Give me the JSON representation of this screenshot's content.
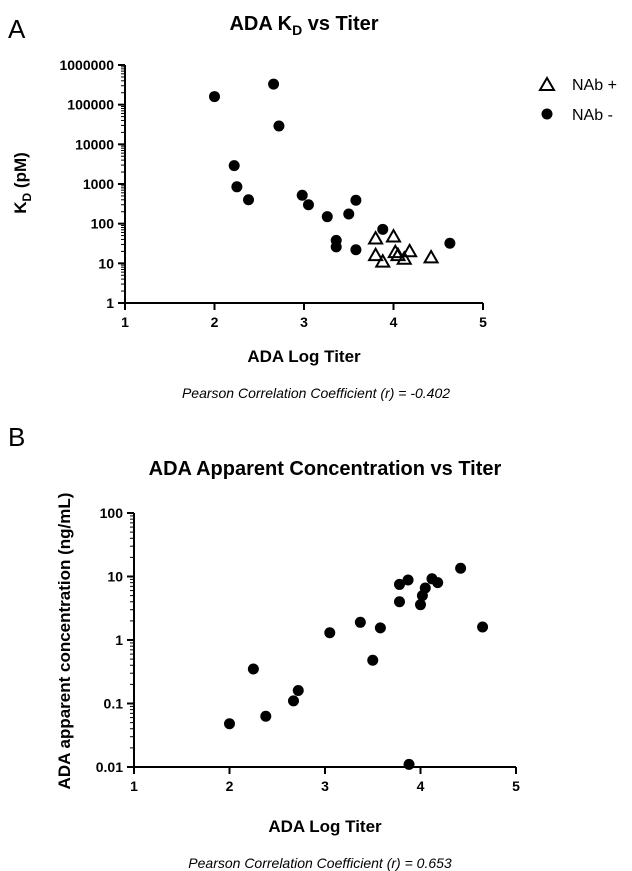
{
  "chart_data": [
    {
      "panel_label": "A",
      "type": "scatter",
      "title": "ADA K",
      "title_sub": "D",
      "title_rest": " vs Titer",
      "xlabel": "ADA Log Titer",
      "ylabel": "K",
      "ylabel_sub": "D",
      "ylabel_rest": " (pM)",
      "x_scale": "linear",
      "y_scale": "log",
      "xlim": [
        1,
        5
      ],
      "ylim": [
        1,
        1000000
      ],
      "x_ticks": [
        1,
        2,
        3,
        4,
        5
      ],
      "x_tick_labels": [
        "1",
        "2",
        "3",
        "4",
        "5"
      ],
      "y_ticks": [
        1,
        10,
        100,
        1000,
        10000,
        100000,
        1000000
      ],
      "y_tick_labels": [
        "1",
        "10",
        "100",
        "1000",
        "10000",
        "100000",
        "1000000"
      ],
      "grid": false,
      "legend_position": "top-right",
      "series": [
        {
          "name": "NAb +",
          "marker": "triangle-open",
          "points": [
            {
              "x": 3.8,
              "y": 42
            },
            {
              "x": 3.8,
              "y": 16
            },
            {
              "x": 3.88,
              "y": 11
            },
            {
              "x": 4.0,
              "y": 47
            },
            {
              "x": 4.02,
              "y": 19
            },
            {
              "x": 4.05,
              "y": 16
            },
            {
              "x": 4.12,
              "y": 13
            },
            {
              "x": 4.18,
              "y": 20
            },
            {
              "x": 4.42,
              "y": 14
            }
          ]
        },
        {
          "name": "NAb -",
          "marker": "circle-filled",
          "points": [
            {
              "x": 2.0,
              "y": 160000
            },
            {
              "x": 2.22,
              "y": 2900
            },
            {
              "x": 2.25,
              "y": 850
            },
            {
              "x": 2.38,
              "y": 400
            },
            {
              "x": 2.66,
              "y": 330000
            },
            {
              "x": 2.72,
              "y": 29000
            },
            {
              "x": 2.98,
              "y": 520
            },
            {
              "x": 3.05,
              "y": 300
            },
            {
              "x": 3.26,
              "y": 150
            },
            {
              "x": 3.36,
              "y": 38
            },
            {
              "x": 3.36,
              "y": 26
            },
            {
              "x": 3.5,
              "y": 175
            },
            {
              "x": 3.58,
              "y": 390
            },
            {
              "x": 3.58,
              "y": 22
            },
            {
              "x": 3.88,
              "y": 72
            },
            {
              "x": 4.63,
              "y": 32
            }
          ]
        }
      ],
      "annotation": "Pearson Correlation Coefficient (r) = -0.402"
    },
    {
      "panel_label": "B",
      "type": "scatter",
      "title": "ADA Apparent Concentration vs Titer",
      "xlabel": "ADA Log Titer",
      "ylabel": "ADA apparent concentration (ng/mL)",
      "x_scale": "linear",
      "y_scale": "log",
      "xlim": [
        1,
        5
      ],
      "ylim": [
        0.01,
        100
      ],
      "x_ticks": [
        1,
        2,
        3,
        4,
        5
      ],
      "x_tick_labels": [
        "1",
        "2",
        "3",
        "4",
        "5"
      ],
      "y_ticks": [
        0.01,
        0.1,
        1,
        10,
        100
      ],
      "y_tick_labels": [
        "0.01",
        "0.1",
        "1",
        "10",
        "100"
      ],
      "grid": false,
      "series": [
        {
          "marker": "circle-filled",
          "points": [
            {
              "x": 2.0,
              "y": 0.048
            },
            {
              "x": 2.25,
              "y": 0.35
            },
            {
              "x": 2.38,
              "y": 0.063
            },
            {
              "x": 2.67,
              "y": 0.11
            },
            {
              "x": 2.72,
              "y": 0.16
            },
            {
              "x": 3.05,
              "y": 1.3
            },
            {
              "x": 3.37,
              "y": 1.9
            },
            {
              "x": 3.5,
              "y": 0.48
            },
            {
              "x": 3.58,
              "y": 1.55
            },
            {
              "x": 3.78,
              "y": 7.5
            },
            {
              "x": 3.78,
              "y": 4.0
            },
            {
              "x": 3.87,
              "y": 8.8
            },
            {
              "x": 3.88,
              "y": 0.011
            },
            {
              "x": 4.0,
              "y": 3.6
            },
            {
              "x": 4.02,
              "y": 5.0
            },
            {
              "x": 4.05,
              "y": 6.6
            },
            {
              "x": 4.12,
              "y": 9.2
            },
            {
              "x": 4.18,
              "y": 8.0
            },
            {
              "x": 4.42,
              "y": 13.5
            },
            {
              "x": 4.65,
              "y": 1.6
            }
          ]
        }
      ],
      "annotation": "Pearson Correlation Coefficient (r) = 0.653"
    }
  ]
}
